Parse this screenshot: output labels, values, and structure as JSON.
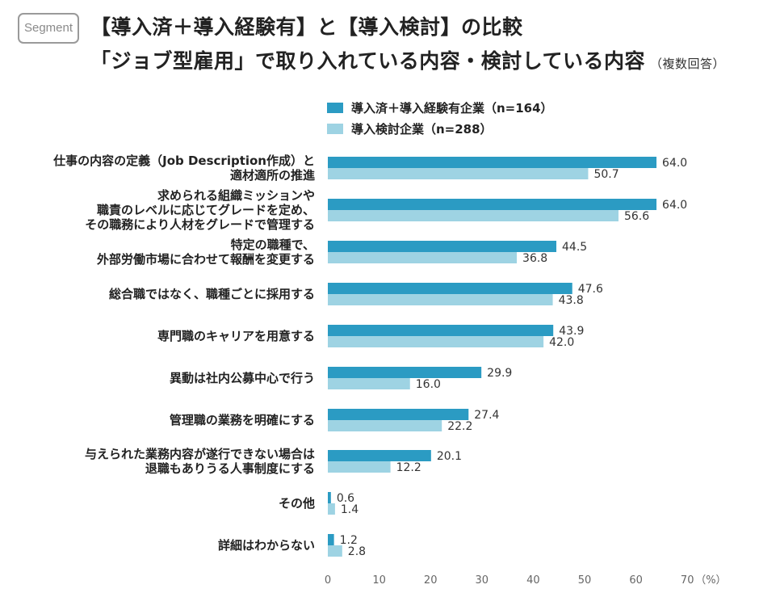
{
  "badge": "Segment",
  "title_line1": "【導入済＋導入経験有】と【導入検討】の比較",
  "title_line2": "「ジョブ型雇用」で取り入れている内容・検討している内容",
  "title_note": "（複数回答）",
  "colors": {
    "series1": "#2b9bc3",
    "series2": "#9ed3e3"
  },
  "chart_data": {
    "type": "bar",
    "orientation": "horizontal",
    "categories": [
      [
        "仕事の内容の定義（Job Description作成）と",
        "適材適所の推進"
      ],
      [
        "求められる組織ミッションや",
        "職責のレベルに応じてグレードを定め、",
        "その職務により人材をグレードで管理する"
      ],
      [
        "特定の職種で、",
        "外部労働市場に合わせて報酬を変更する"
      ],
      [
        "総合職ではなく、職種ごとに採用する"
      ],
      [
        "専門職のキャリアを用意する"
      ],
      [
        "異動は社内公募中心で行う"
      ],
      [
        "管理職の業務を明確にする"
      ],
      [
        "与えられた業務内容が遂行できない場合は",
        "退職もありうる人事制度にする"
      ],
      [
        "その他"
      ],
      [
        "詳細はわからない"
      ]
    ],
    "series": [
      {
        "name": "導入済＋導入経験有企業（n=164）",
        "values": [
          64.0,
          64.0,
          44.5,
          47.6,
          43.9,
          29.9,
          27.4,
          20.1,
          0.6,
          1.2
        ]
      },
      {
        "name": "導入検討企業（n=288）",
        "values": [
          50.7,
          56.6,
          36.8,
          43.8,
          42.0,
          16.0,
          22.2,
          12.2,
          1.4,
          2.8
        ]
      }
    ],
    "value_labels_1": [
      "64.0",
      "64.0",
      "44.5",
      "47.6",
      "43.9",
      "29.9",
      "27.4",
      "20.1",
      "0.6",
      "1.2"
    ],
    "value_labels_2": [
      "50.7",
      "56.6",
      "36.8",
      "43.8",
      "42.0",
      "16.0",
      "22.2",
      "12.2",
      "1.4",
      "2.8"
    ],
    "xlim": [
      0,
      70
    ],
    "xticks": [
      "0",
      "10",
      "20",
      "30",
      "40",
      "50",
      "60",
      "70"
    ],
    "xunit": "（%）",
    "legend_position": "top"
  }
}
